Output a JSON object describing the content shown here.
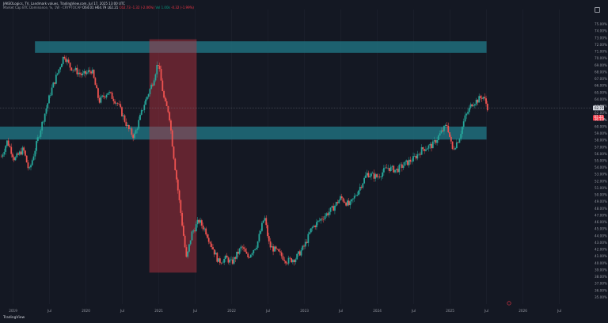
{
  "header": {
    "line1": "JAKEOLogics, TV, Landmark values, TradingView.com, Jul 17, 2025 13:00 UTC",
    "line2": {
      "label": "Market Cap BTC Dominance, %, 1W · CRYPTOCAP",
      "open": "O64.01",
      "high": "H64.79",
      "low": "L62.21",
      "close": "C62.73",
      "change": "-1.32 (-2.06%)",
      "vol": "Vol 1.00k",
      "vol_change": "-0.32 (-1.99%)"
    }
  },
  "colors": {
    "background": "#141823",
    "up": "#26a69a",
    "down": "#ef5350",
    "zone": "#1e6f7d",
    "drop_zone": "#c23340"
  },
  "icons": {
    "logo": "tradingview-logo-icon",
    "settings": "chart-settings-icon"
  },
  "footer": {
    "logo_text": "TradingView"
  },
  "price_label": {
    "current": "62.73",
    "alert": "62.35",
    "countdown": "3d 11h"
  },
  "chart_data": {
    "type": "candlestick",
    "title": "Market Cap BTC Dominance, %, 1W",
    "ylim": [
      34.0,
      76.0
    ],
    "y_ticks": [
      "75.00%",
      "74.00%",
      "73.00%",
      "72.00%",
      "71.00%",
      "70.00%",
      "69.00%",
      "68.00%",
      "67.00%",
      "66.00%",
      "65.00%",
      "64.00%",
      "63.00%",
      "62.00%",
      "61.00%",
      "60.00%",
      "59.00%",
      "58.00%",
      "57.00%",
      "56.00%",
      "55.00%",
      "54.00%",
      "53.00%",
      "52.00%",
      "51.00%",
      "50.00%",
      "49.00%",
      "48.00%",
      "47.00%",
      "46.00%",
      "45.00%",
      "44.00%",
      "43.00%",
      "42.00%",
      "41.00%",
      "40.00%",
      "39.00%",
      "38.00%",
      "37.00%",
      "36.00%",
      "35.00%"
    ],
    "x_ticks": [
      {
        "label": "2019",
        "t": 2019.0
      },
      {
        "label": "Jul",
        "t": 2019.5
      },
      {
        "label": "2020",
        "t": 2020.0
      },
      {
        "label": "Jul",
        "t": 2020.5
      },
      {
        "label": "2021",
        "t": 2021.0
      },
      {
        "label": "Jul",
        "t": 2021.5
      },
      {
        "label": "2022",
        "t": 2022.0
      },
      {
        "label": "Jul",
        "t": 2022.5
      },
      {
        "label": "2023",
        "t": 2023.0
      },
      {
        "label": "Jul",
        "t": 2023.5
      },
      {
        "label": "2024",
        "t": 2024.0
      },
      {
        "label": "Jul",
        "t": 2024.5
      },
      {
        "label": "2025",
        "t": 2025.0
      },
      {
        "label": "Jul",
        "t": 2025.5
      },
      {
        "label": "2026",
        "t": 2026.0
      },
      {
        "label": "Jul",
        "t": 2026.5
      }
    ],
    "x_range": [
      2018.82,
      2026.95
    ],
    "zones": [
      {
        "name": "resistance-zone",
        "t0": 2019.3,
        "t1": 2025.5,
        "y0": 70.8,
        "y1": 72.5
      },
      {
        "name": "support-zone",
        "t0": 2018.82,
        "t1": 2025.5,
        "y0": 58.1,
        "y1": 60.0
      }
    ],
    "drop_zone": {
      "t0": 2020.87,
      "t1": 2021.52,
      "y0": 38.6,
      "y1": 72.8
    },
    "current_price_line": 62.73,
    "anchors": [
      [
        2018.84,
        55.6
      ],
      [
        2018.92,
        57.9
      ],
      [
        2019.02,
        55.2
      ],
      [
        2019.14,
        56.7
      ],
      [
        2019.22,
        53.4
      ],
      [
        2019.36,
        59.0
      ],
      [
        2019.52,
        65.2
      ],
      [
        2019.7,
        70.5
      ],
      [
        2019.78,
        68.8
      ],
      [
        2019.95,
        67.5
      ],
      [
        2020.08,
        68.3
      ],
      [
        2020.18,
        63.7
      ],
      [
        2020.3,
        65.1
      ],
      [
        2020.44,
        63.3
      ],
      [
        2020.58,
        59.7
      ],
      [
        2020.66,
        58.5
      ],
      [
        2020.8,
        63.3
      ],
      [
        2020.92,
        66.6
      ],
      [
        2020.99,
        69.5
      ],
      [
        2021.08,
        63.5
      ],
      [
        2021.14,
        62.1
      ],
      [
        2021.2,
        56.1
      ],
      [
        2021.32,
        45.8
      ],
      [
        2021.38,
        40.5
      ],
      [
        2021.45,
        44.3
      ],
      [
        2021.55,
        46.2
      ],
      [
        2021.64,
        44.8
      ],
      [
        2021.74,
        42.2
      ],
      [
        2021.82,
        40.2
      ],
      [
        2021.93,
        40.7
      ],
      [
        2022.0,
        40.0
      ],
      [
        2022.14,
        42.4
      ],
      [
        2022.22,
        40.8
      ],
      [
        2022.35,
        42.8
      ],
      [
        2022.45,
        46.8
      ],
      [
        2022.52,
        42.5
      ],
      [
        2022.62,
        41.7
      ],
      [
        2022.76,
        40.3
      ],
      [
        2022.88,
        40.7
      ],
      [
        2023.0,
        42.5
      ],
      [
        2023.1,
        45.1
      ],
      [
        2023.25,
        46.7
      ],
      [
        2023.38,
        47.9
      ],
      [
        2023.5,
        49.6
      ],
      [
        2023.62,
        48.4
      ],
      [
        2023.74,
        50.7
      ],
      [
        2023.86,
        53.1
      ],
      [
        2024.0,
        52.6
      ],
      [
        2024.14,
        54.0
      ],
      [
        2024.26,
        53.6
      ],
      [
        2024.38,
        54.5
      ],
      [
        2024.5,
        55.3
      ],
      [
        2024.62,
        56.7
      ],
      [
        2024.76,
        57.3
      ],
      [
        2024.88,
        59.2
      ],
      [
        2024.96,
        60.3
      ],
      [
        2025.03,
        56.6
      ],
      [
        2025.12,
        58.2
      ],
      [
        2025.2,
        61.2
      ],
      [
        2025.3,
        63.4
      ],
      [
        2025.38,
        63.9
      ],
      [
        2025.45,
        64.5
      ],
      [
        2025.52,
        62.7
      ]
    ],
    "vol": 0.45,
    "seed": 7
  }
}
